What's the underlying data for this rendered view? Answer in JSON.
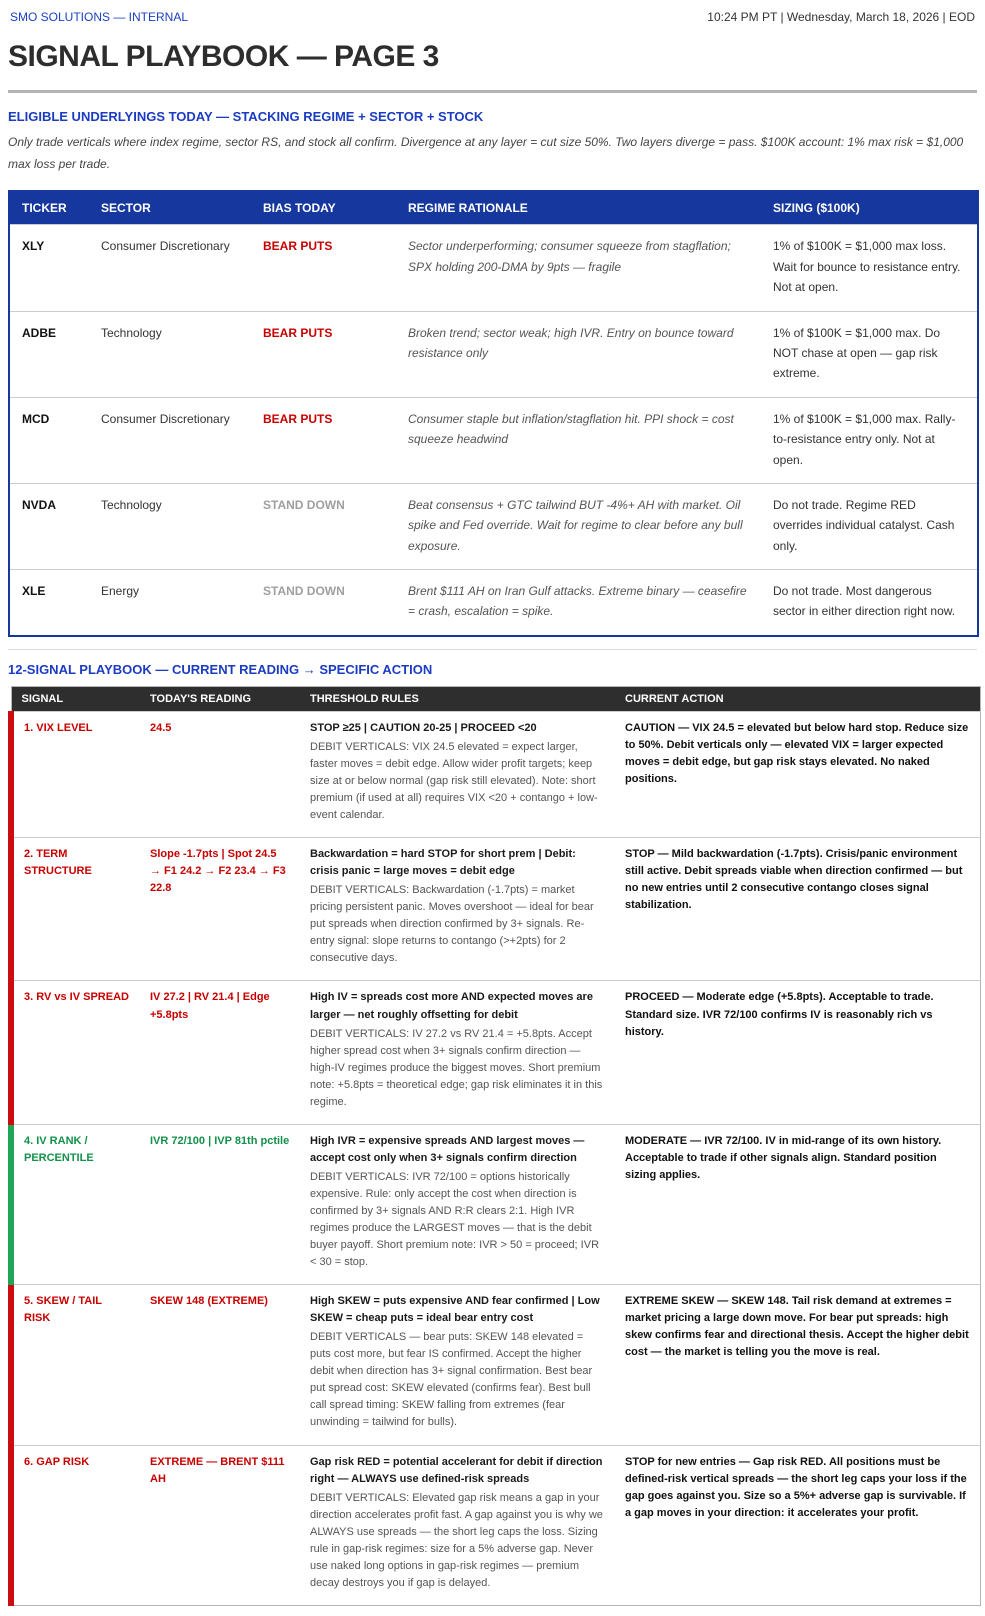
{
  "header": {
    "brand": "SMO SOLUTIONS — INTERNAL",
    "timestamp": "10:24 PM PT | Wednesday, March 18, 2026 | EOD"
  },
  "title": "SIGNAL PLAYBOOK — PAGE 3",
  "colors": {
    "accent_blue": "#16389e",
    "heading_blue": "#1b3cc2",
    "alert_red": "#c80000",
    "ok_green": "#12914a",
    "stand_down_gray": "#9f9f9f",
    "dark_header": "#2e2e2e"
  },
  "underlyings": {
    "heading": "ELIGIBLE UNDERLYINGS TODAY — STACKING REGIME + SECTOR + STOCK",
    "note": "Only trade verticals where index regime, sector RS, and stock all confirm. Divergence at any layer = cut size 50%. Two layers diverge = pass. $100K account: 1% max risk = $1,000 max loss per trade.",
    "columns": [
      "TICKER",
      "SECTOR",
      "BIAS TODAY",
      "REGIME RATIONALE",
      "SIZING ($100K)"
    ],
    "rows": [
      {
        "ticker": "XLY",
        "sector": "Consumer Discretionary",
        "bias": "BEAR PUTS",
        "bias_type": "bear",
        "rationale": "Sector underperforming; consumer squeeze from stagflation; SPX holding 200-DMA by 9pts — fragile",
        "sizing": "1% of $100K = $1,000 max loss. Wait for bounce to resistance entry. Not at open."
      },
      {
        "ticker": "ADBE",
        "sector": "Technology",
        "bias": "BEAR PUTS",
        "bias_type": "bear",
        "rationale": "Broken trend; sector weak; high IVR. Entry on bounce toward resistance only",
        "sizing": "1% of $100K = $1,000 max. Do NOT chase at open — gap risk extreme."
      },
      {
        "ticker": "MCD",
        "sector": "Consumer Discretionary",
        "bias": "BEAR PUTS",
        "bias_type": "bear",
        "rationale": "Consumer staple but inflation/stagflation hit. PPI shock = cost squeeze headwind",
        "sizing": "1% of $100K = $1,000 max. Rally-to-resistance entry only. Not at open."
      },
      {
        "ticker": "NVDA",
        "sector": "Technology",
        "bias": "STAND DOWN",
        "bias_type": "stand",
        "rationale": "Beat consensus + GTC tailwind BUT -4%+ AH with market. Oil spike and Fed override. Wait for regime to clear before any bull exposure.",
        "sizing": "Do not trade. Regime RED overrides individual catalyst. Cash only."
      },
      {
        "ticker": "XLE",
        "sector": "Energy",
        "bias": "STAND DOWN",
        "bias_type": "stand",
        "rationale": "Brent $111 AH on Iran Gulf attacks. Extreme binary — ceasefire = crash, escalation = spike.",
        "sizing": "Do not trade. Most dangerous sector in either direction right now."
      }
    ]
  },
  "signals": {
    "heading": "12-SIGNAL PLAYBOOK — CURRENT READING → SPECIFIC ACTION",
    "columns": [
      "SIGNAL",
      "TODAY'S READING",
      "THRESHOLD RULES",
      "CURRENT ACTION"
    ],
    "rows": [
      {
        "name": "1. VIX LEVEL",
        "reading": "24.5",
        "status_color": "red",
        "threshold_headline": "STOP ≥25 | CAUTION 20-25 | PROCEED <20",
        "threshold_detail": "DEBIT VERTICALS: VIX 24.5 elevated = expect larger, faster moves = debit edge. Allow wider profit targets; keep size at or below normal (gap risk still elevated). Note: short premium (if used at all) requires VIX <20 + contango + low-event calendar.",
        "action": "CAUTION — VIX 24.5 = elevated but below hard stop. Reduce size to 50%. Debit verticals only — elevated VIX = larger expected moves = debit edge, but gap risk stays elevated. No naked positions."
      },
      {
        "name": "2. TERM STRUCTURE",
        "reading": "Slope -1.7pts | Spot 24.5 → F1 24.2 → F2 23.4 → F3 22.8",
        "status_color": "red",
        "threshold_headline": "Backwardation = hard STOP for short prem | Debit: crisis panic = large moves = debit edge",
        "threshold_detail": "DEBIT VERTICALS: Backwardation (-1.7pts) = market pricing persistent panic. Moves overshoot — ideal for bear put spreads when direction confirmed by 3+ signals. Re-entry signal: slope returns to contango (>+2pts) for 2 consecutive days.",
        "action": "STOP — Mild backwardation (-1.7pts). Crisis/panic environment still active. Debit spreads viable when direction confirmed — but no new entries until 2 consecutive contango closes signal stabilization."
      },
      {
        "name": "3. RV vs IV SPREAD",
        "reading": "IV 27.2 | RV 21.4 | Edge +5.8pts",
        "status_color": "red",
        "threshold_headline": "High IV = spreads cost more AND expected moves are larger — net roughly offsetting for debit",
        "threshold_detail": "DEBIT VERTICALS: IV 27.2 vs RV 21.4 = +5.8pts. Accept higher spread cost when 3+ signals confirm direction — high-IV regimes produce the biggest moves. Short premium note: +5.8pts = theoretical edge; gap risk eliminates it in this regime.",
        "action": "PROCEED — Moderate edge (+5.8pts). Acceptable to trade. Standard size. IVR 72/100 confirms IV is reasonably rich vs history."
      },
      {
        "name": "4. IV RANK / PERCENTILE",
        "reading": "IVR 72/100 | IVP 81th pctile",
        "status_color": "green",
        "threshold_headline": "High IVR = expensive spreads AND largest moves — accept cost only when 3+ signals confirm direction",
        "threshold_detail": "DEBIT VERTICALS: IVR 72/100 = options historically expensive. Rule: only accept the cost when direction is confirmed by 3+ signals AND R:R clears 2:1. High IVR regimes produce the LARGEST moves — that is the debit buyer payoff. Short premium note: IVR > 50 = proceed; IVR < 30 = stop.",
        "action": "MODERATE — IVR 72/100. IV in mid-range of its own history. Acceptable to trade if other signals align. Standard position sizing applies."
      },
      {
        "name": "5. SKEW / TAIL RISK",
        "reading": "SKEW 148 (EXTREME)",
        "status_color": "red",
        "threshold_headline": "High SKEW = puts expensive AND fear confirmed | Low SKEW = cheap puts = ideal bear entry cost",
        "threshold_detail": "DEBIT VERTICALS — bear puts: SKEW 148 elevated = puts cost more, but fear IS confirmed. Accept the higher debit when direction has 3+ signal confirmation. Best bear put spread cost: SKEW elevated (confirms fear). Best bull call spread timing: SKEW falling from extremes (fear unwinding = tailwind for bulls).",
        "action": "EXTREME SKEW — SKEW 148. Tail risk demand at extremes = market pricing a large down move. For bear put spreads: high skew confirms fear and directional thesis. Accept the higher debit cost — the market is telling you the move is real."
      },
      {
        "name": "6. GAP RISK",
        "reading": "EXTREME — BRENT $111 AH",
        "status_color": "red",
        "threshold_headline": "Gap risk RED = potential accelerant for debit if direction right — ALWAYS use defined-risk spreads",
        "threshold_detail": "DEBIT VERTICALS: Elevated gap risk means a gap in your direction accelerates profit fast. A gap against you is why we ALWAYS use spreads — the short leg caps the loss. Sizing rule in gap-risk regimes: size for a 5% adverse gap. Never use naked long options in gap-risk regimes — premium decay destroys you if gap is delayed.",
        "action": "STOP for new entries — Gap risk RED. All positions must be defined-risk vertical spreads — the short leg caps your loss if the gap goes against you. Size so a 5%+ adverse gap is survivable. If a gap moves in your direction: it accelerates your profit."
      }
    ]
  }
}
